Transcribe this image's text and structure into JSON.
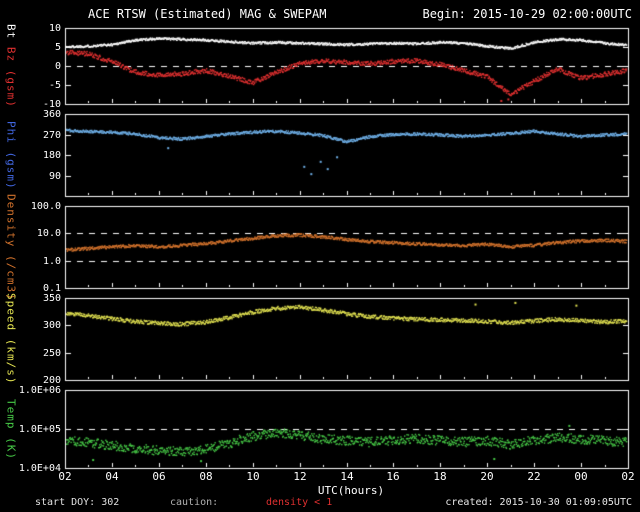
{
  "header": {
    "title": "ACE RTSW (Estimated) MAG & SWEPAM",
    "begin": "Begin: 2015-10-29 02:00:00UTC"
  },
  "footer": {
    "start_doy": "start DOY: 302",
    "caution_label": "caution:",
    "caution_value": "density < 1",
    "created": "created: 2015-10-30 01:09:05UTC"
  },
  "colors": {
    "background": "#000000",
    "frame": "#ffffff",
    "bt": "#ffffff",
    "bz": "#e03030",
    "phi_label": "#4166e0",
    "phi_trace": "#6fb0e8",
    "density": "#d2722c",
    "speed": "#e0e050",
    "temp": "#46c846"
  },
  "x_axis": {
    "label": "UTC(hours)",
    "range": [
      2,
      26
    ],
    "ticks": [
      {
        "v": 2,
        "label": "02"
      },
      {
        "v": 4,
        "label": "04"
      },
      {
        "v": 6,
        "label": "06"
      },
      {
        "v": 8,
        "label": "08"
      },
      {
        "v": 10,
        "label": "10"
      },
      {
        "v": 12,
        "label": "12"
      },
      {
        "v": 14,
        "label": "14"
      },
      {
        "v": 16,
        "label": "16"
      },
      {
        "v": 18,
        "label": "18"
      },
      {
        "v": 20,
        "label": "20"
      },
      {
        "v": 22,
        "label": "22"
      },
      {
        "v": 24,
        "label": "00"
      },
      {
        "v": 26,
        "label": "02"
      }
    ]
  },
  "keyframe_hours": [
    2,
    3,
    4,
    5,
    6,
    7,
    8,
    9,
    10,
    11,
    12,
    13,
    14,
    15,
    16,
    17,
    18,
    19,
    20,
    21,
    22,
    23,
    24,
    25,
    26
  ],
  "chart_data": [
    {
      "type": "scatter",
      "name": "mag",
      "ylabel_parts": [
        {
          "text": "Bt",
          "color": "#ffffff"
        },
        {
          "text": "Bz",
          "color": "#e03030"
        },
        {
          "text": "(gsm)",
          "color": "#e03030"
        }
      ],
      "yscale": "linear",
      "ylim": [
        -10,
        10
      ],
      "yticks": [
        {
          "v": 10,
          "label": "10"
        },
        {
          "v": 5,
          "label": "5"
        },
        {
          "v": 0,
          "label": "0"
        },
        {
          "v": -5,
          "label": "-5"
        },
        {
          "v": -10,
          "label": "-10"
        }
      ],
      "dashed": [
        0
      ],
      "series": [
        {
          "name": "Bt",
          "color": "#ffffff",
          "jitter": 0.3,
          "values": [
            5.0,
            5.2,
            5.6,
            6.8,
            7.2,
            7.0,
            6.8,
            6.4,
            6.0,
            6.2,
            6.0,
            5.8,
            5.6,
            5.8,
            6.0,
            5.8,
            6.2,
            6.0,
            5.2,
            4.6,
            6.2,
            7.0,
            6.8,
            6.0,
            5.4
          ]
        },
        {
          "name": "Bz",
          "color": "#e03030",
          "jitter": 0.6,
          "values": [
            3.6,
            3.2,
            1.2,
            -1.6,
            -2.4,
            -2.0,
            -1.2,
            -2.6,
            -4.4,
            -1.8,
            0.6,
            1.4,
            1.0,
            0.6,
            1.2,
            1.4,
            0.4,
            -1.2,
            -2.8,
            -7.6,
            -4.0,
            -0.8,
            -3.2,
            -2.2,
            -1.2
          ],
          "extra_points": [
            [
              20.6,
              -9.2
            ],
            [
              20.9,
              -8.8
            ]
          ]
        }
      ]
    },
    {
      "type": "scatter",
      "name": "phi",
      "ylabel_parts": [
        {
          "text": "Phi",
          "color": "#4166e0"
        },
        {
          "text": "(gsm)",
          "color": "#4166e0"
        }
      ],
      "yscale": "linear",
      "ylim": [
        0,
        360
      ],
      "yticks": [
        {
          "v": 360,
          "label": "360"
        },
        {
          "v": 270,
          "label": "270"
        },
        {
          "v": 180,
          "label": "180"
        },
        {
          "v": 90,
          "label": "90"
        }
      ],
      "dashed": [],
      "series": [
        {
          "name": "Phi",
          "color": "#6fb0e8",
          "jitter": 6,
          "values": [
            288,
            284,
            280,
            272,
            256,
            250,
            262,
            272,
            280,
            284,
            276,
            266,
            238,
            260,
            270,
            272,
            268,
            262,
            268,
            274,
            284,
            272,
            262,
            268,
            272
          ],
          "extra_points": [
            [
              6.4,
              210
            ],
            [
              12.2,
              128
            ],
            [
              12.5,
              96
            ],
            [
              12.9,
              150
            ],
            [
              13.2,
              118
            ],
            [
              13.6,
              170
            ]
          ]
        }
      ]
    },
    {
      "type": "scatter",
      "name": "density",
      "ylabel_parts": [
        {
          "text": "Density",
          "color": "#d2722c"
        },
        {
          "text": "(/cm3)",
          "color": "#d2722c"
        }
      ],
      "yscale": "log",
      "ylim": [
        0.1,
        100
      ],
      "yticks": [
        {
          "v": 100,
          "label": "100.0"
        },
        {
          "v": 10,
          "label": "10.0"
        },
        {
          "v": 1,
          "label": "1.0"
        },
        {
          "v": 0.1,
          "label": "0.1"
        }
      ],
      "dashed": [
        10,
        1
      ],
      "series": [
        {
          "name": "Density",
          "color": "#d2722c",
          "jitter": 0.055,
          "values": [
            2.4,
            2.8,
            3.2,
            3.5,
            3.2,
            3.6,
            4.2,
            5.2,
            6.5,
            8.2,
            8.6,
            7.4,
            6.0,
            5.0,
            4.5,
            4.1,
            3.8,
            3.6,
            4.0,
            3.2,
            3.6,
            4.6,
            5.2,
            5.6,
            5.0
          ]
        }
      ]
    },
    {
      "type": "scatter",
      "name": "speed",
      "ylabel_parts": [
        {
          "text": "Speed",
          "color": "#e0e050"
        },
        {
          "text": "(km/s)",
          "color": "#e0e050"
        }
      ],
      "yscale": "linear",
      "ylim": [
        200,
        350
      ],
      "yticks": [
        {
          "v": 350,
          "label": "350"
        },
        {
          "v": 300,
          "label": "300"
        },
        {
          "v": 250,
          "label": "250"
        },
        {
          "v": 200,
          "label": "200"
        }
      ],
      "dashed": [],
      "series": [
        {
          "name": "Speed",
          "color": "#e0e050",
          "jitter": 3.5,
          "values": [
            322,
            318,
            312,
            307,
            304,
            302,
            306,
            314,
            324,
            331,
            333,
            328,
            321,
            316,
            313,
            311,
            310,
            309,
            307,
            305,
            308,
            311,
            309,
            306,
            308
          ],
          "extra_points": [
            [
              19.5,
              338
            ],
            [
              21.2,
              341
            ],
            [
              23.8,
              336
            ]
          ]
        }
      ]
    },
    {
      "type": "scatter",
      "name": "temp",
      "ylabel_parts": [
        {
          "text": "Temp",
          "color": "#46c846"
        },
        {
          "text": "(K)",
          "color": "#46c846"
        }
      ],
      "yscale": "log",
      "ylim": [
        10000,
        1000000
      ],
      "yticks": [
        {
          "v": 1000000,
          "label": "1.0E+06"
        },
        {
          "v": 100000,
          "label": "1.0E+05"
        },
        {
          "v": 10000,
          "label": "1.0E+04"
        }
      ],
      "dashed": [
        100000
      ],
      "series": [
        {
          "name": "Temp",
          "color": "#46c846",
          "jitter": 0.12,
          "values": [
            50000,
            45000,
            38000,
            32000,
            28000,
            26000,
            30000,
            42000,
            65000,
            80000,
            70000,
            55000,
            50000,
            46000,
            52000,
            56000,
            50000,
            46000,
            50000,
            40000,
            52000,
            60000,
            55000,
            50000,
            45000
          ],
          "extra_points": [
            [
              3.2,
              16000
            ],
            [
              7.8,
              15000
            ],
            [
              20.3,
              17000
            ],
            [
              23.5,
              120000
            ]
          ]
        }
      ]
    }
  ]
}
